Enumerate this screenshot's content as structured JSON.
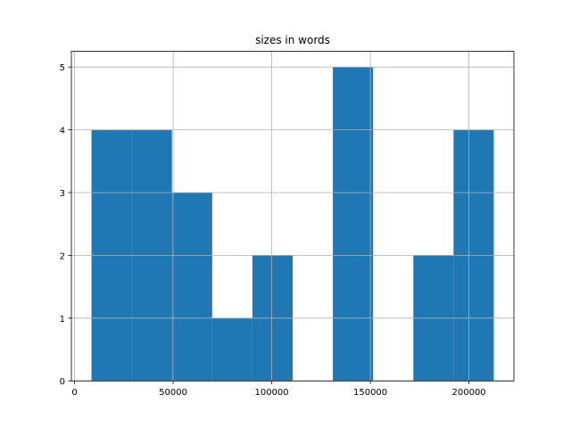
{
  "chart_data": {
    "type": "histogram",
    "title": "sizes in words",
    "bins": [
      8600,
      29000,
      49400,
      69800,
      90200,
      110600,
      131000,
      151400,
      171800,
      192200,
      212600
    ],
    "counts": [
      4,
      4,
      3,
      1,
      2,
      0,
      5,
      0,
      2,
      4
    ],
    "color": "#1f77b4",
    "xlim": [
      -1600,
      222800
    ],
    "xticks": [
      0,
      50000,
      100000,
      150000,
      200000
    ],
    "ylim": [
      0,
      5.25
    ],
    "yticks": [
      0,
      1,
      2,
      3,
      4,
      5
    ],
    "grid": true
  }
}
